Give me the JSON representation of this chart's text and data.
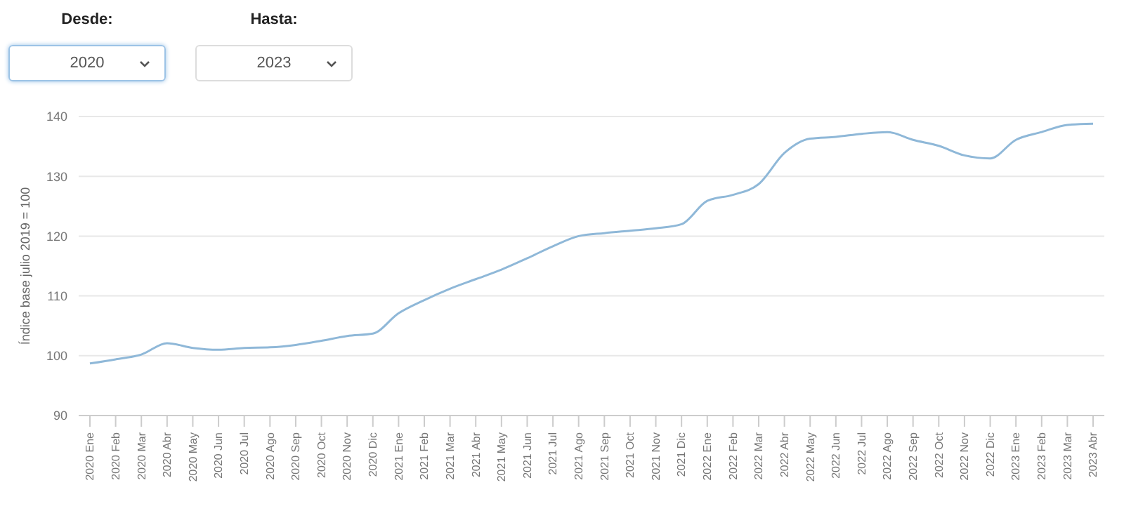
{
  "chart_data": {
    "type": "line",
    "ylabel": "Índice base julio 2019 = 100",
    "annotations": [
      "Desde:",
      "2020",
      "Hasta:",
      "2023"
    ],
    "categories": [
      "2020 Ene",
      "2020 Feb",
      "2020 Mar",
      "2020 Abr",
      "2020 May",
      "2020 Jun",
      "2020 Jul",
      "2020 Ago",
      "2020 Sep",
      "2020 Oct",
      "2020 Nov",
      "2020 Dic",
      "2021 Ene",
      "2021 Feb",
      "2021 Mar",
      "2021 Abr",
      "2021 May",
      "2021 Jun",
      "2021 Jul",
      "2021 Ago",
      "2021 Sep",
      "2021 Oct",
      "2021 Nov",
      "2021 Dic",
      "2022 Ene",
      "2022 Feb",
      "2022 Mar",
      "2022 Abr",
      "2022 May",
      "2022 Jun",
      "2022 Jul",
      "2022 Ago",
      "2022 Sep",
      "2022 Oct",
      "2022 Nov",
      "2022 Dic",
      "2023 Ene",
      "2023 Feb",
      "2023 Mar",
      "2023 Abr"
    ],
    "series": [
      {
        "color": "#8fb8d8",
        "values": [
          98.7,
          99.4,
          100.2,
          102.1,
          101.3,
          101.0,
          101.3,
          101.4,
          101.8,
          102.5,
          103.3,
          103.7,
          107.1,
          109.3,
          111.2,
          112.8,
          114.4,
          116.3,
          118.3,
          120.0,
          120.5,
          120.9,
          121.3,
          122.0,
          125.9,
          126.9,
          128.7,
          133.9,
          136.3,
          136.6,
          137.1,
          137.4,
          136.1,
          135.1,
          133.5,
          133.0,
          136.1,
          137.4,
          138.6,
          138.8
        ]
      }
    ],
    "ylim": [
      90,
      140
    ],
    "yticks": [
      90,
      100,
      110,
      120,
      130,
      140
    ],
    "grid": "y",
    "marker": "none",
    "line_style": "solid"
  }
}
